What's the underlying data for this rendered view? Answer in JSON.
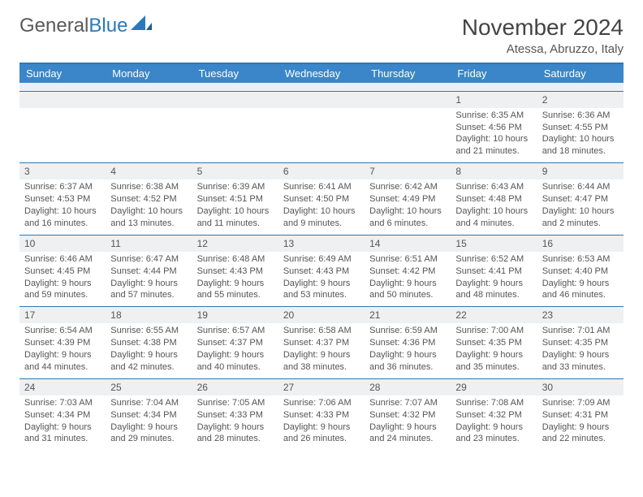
{
  "logo": {
    "text1": "General",
    "text2": "Blue"
  },
  "title": "November 2024",
  "location": "Atessa, Abruzzo, Italy",
  "colors": {
    "header_bg": "#3a86c8",
    "rule": "#2a7ab9",
    "daynum_bg": "#eef0f1",
    "text": "#555555"
  },
  "day_headers": [
    "Sunday",
    "Monday",
    "Tuesday",
    "Wednesday",
    "Thursday",
    "Friday",
    "Saturday"
  ],
  "weeks": [
    [
      null,
      null,
      null,
      null,
      null,
      {
        "n": "1",
        "sr": "Sunrise: 6:35 AM",
        "ss": "Sunset: 4:56 PM",
        "d1": "Daylight: 10 hours",
        "d2": "and 21 minutes."
      },
      {
        "n": "2",
        "sr": "Sunrise: 6:36 AM",
        "ss": "Sunset: 4:55 PM",
        "d1": "Daylight: 10 hours",
        "d2": "and 18 minutes."
      }
    ],
    [
      {
        "n": "3",
        "sr": "Sunrise: 6:37 AM",
        "ss": "Sunset: 4:53 PM",
        "d1": "Daylight: 10 hours",
        "d2": "and 16 minutes."
      },
      {
        "n": "4",
        "sr": "Sunrise: 6:38 AM",
        "ss": "Sunset: 4:52 PM",
        "d1": "Daylight: 10 hours",
        "d2": "and 13 minutes."
      },
      {
        "n": "5",
        "sr": "Sunrise: 6:39 AM",
        "ss": "Sunset: 4:51 PM",
        "d1": "Daylight: 10 hours",
        "d2": "and 11 minutes."
      },
      {
        "n": "6",
        "sr": "Sunrise: 6:41 AM",
        "ss": "Sunset: 4:50 PM",
        "d1": "Daylight: 10 hours",
        "d2": "and 9 minutes."
      },
      {
        "n": "7",
        "sr": "Sunrise: 6:42 AM",
        "ss": "Sunset: 4:49 PM",
        "d1": "Daylight: 10 hours",
        "d2": "and 6 minutes."
      },
      {
        "n": "8",
        "sr": "Sunrise: 6:43 AM",
        "ss": "Sunset: 4:48 PM",
        "d1": "Daylight: 10 hours",
        "d2": "and 4 minutes."
      },
      {
        "n": "9",
        "sr": "Sunrise: 6:44 AM",
        "ss": "Sunset: 4:47 PM",
        "d1": "Daylight: 10 hours",
        "d2": "and 2 minutes."
      }
    ],
    [
      {
        "n": "10",
        "sr": "Sunrise: 6:46 AM",
        "ss": "Sunset: 4:45 PM",
        "d1": "Daylight: 9 hours",
        "d2": "and 59 minutes."
      },
      {
        "n": "11",
        "sr": "Sunrise: 6:47 AM",
        "ss": "Sunset: 4:44 PM",
        "d1": "Daylight: 9 hours",
        "d2": "and 57 minutes."
      },
      {
        "n": "12",
        "sr": "Sunrise: 6:48 AM",
        "ss": "Sunset: 4:43 PM",
        "d1": "Daylight: 9 hours",
        "d2": "and 55 minutes."
      },
      {
        "n": "13",
        "sr": "Sunrise: 6:49 AM",
        "ss": "Sunset: 4:43 PM",
        "d1": "Daylight: 9 hours",
        "d2": "and 53 minutes."
      },
      {
        "n": "14",
        "sr": "Sunrise: 6:51 AM",
        "ss": "Sunset: 4:42 PM",
        "d1": "Daylight: 9 hours",
        "d2": "and 50 minutes."
      },
      {
        "n": "15",
        "sr": "Sunrise: 6:52 AM",
        "ss": "Sunset: 4:41 PM",
        "d1": "Daylight: 9 hours",
        "d2": "and 48 minutes."
      },
      {
        "n": "16",
        "sr": "Sunrise: 6:53 AM",
        "ss": "Sunset: 4:40 PM",
        "d1": "Daylight: 9 hours",
        "d2": "and 46 minutes."
      }
    ],
    [
      {
        "n": "17",
        "sr": "Sunrise: 6:54 AM",
        "ss": "Sunset: 4:39 PM",
        "d1": "Daylight: 9 hours",
        "d2": "and 44 minutes."
      },
      {
        "n": "18",
        "sr": "Sunrise: 6:55 AM",
        "ss": "Sunset: 4:38 PM",
        "d1": "Daylight: 9 hours",
        "d2": "and 42 minutes."
      },
      {
        "n": "19",
        "sr": "Sunrise: 6:57 AM",
        "ss": "Sunset: 4:37 PM",
        "d1": "Daylight: 9 hours",
        "d2": "and 40 minutes."
      },
      {
        "n": "20",
        "sr": "Sunrise: 6:58 AM",
        "ss": "Sunset: 4:37 PM",
        "d1": "Daylight: 9 hours",
        "d2": "and 38 minutes."
      },
      {
        "n": "21",
        "sr": "Sunrise: 6:59 AM",
        "ss": "Sunset: 4:36 PM",
        "d1": "Daylight: 9 hours",
        "d2": "and 36 minutes."
      },
      {
        "n": "22",
        "sr": "Sunrise: 7:00 AM",
        "ss": "Sunset: 4:35 PM",
        "d1": "Daylight: 9 hours",
        "d2": "and 35 minutes."
      },
      {
        "n": "23",
        "sr": "Sunrise: 7:01 AM",
        "ss": "Sunset: 4:35 PM",
        "d1": "Daylight: 9 hours",
        "d2": "and 33 minutes."
      }
    ],
    [
      {
        "n": "24",
        "sr": "Sunrise: 7:03 AM",
        "ss": "Sunset: 4:34 PM",
        "d1": "Daylight: 9 hours",
        "d2": "and 31 minutes."
      },
      {
        "n": "25",
        "sr": "Sunrise: 7:04 AM",
        "ss": "Sunset: 4:34 PM",
        "d1": "Daylight: 9 hours",
        "d2": "and 29 minutes."
      },
      {
        "n": "26",
        "sr": "Sunrise: 7:05 AM",
        "ss": "Sunset: 4:33 PM",
        "d1": "Daylight: 9 hours",
        "d2": "and 28 minutes."
      },
      {
        "n": "27",
        "sr": "Sunrise: 7:06 AM",
        "ss": "Sunset: 4:33 PM",
        "d1": "Daylight: 9 hours",
        "d2": "and 26 minutes."
      },
      {
        "n": "28",
        "sr": "Sunrise: 7:07 AM",
        "ss": "Sunset: 4:32 PM",
        "d1": "Daylight: 9 hours",
        "d2": "and 24 minutes."
      },
      {
        "n": "29",
        "sr": "Sunrise: 7:08 AM",
        "ss": "Sunset: 4:32 PM",
        "d1": "Daylight: 9 hours",
        "d2": "and 23 minutes."
      },
      {
        "n": "30",
        "sr": "Sunrise: 7:09 AM",
        "ss": "Sunset: 4:31 PM",
        "d1": "Daylight: 9 hours",
        "d2": "and 22 minutes."
      }
    ]
  ]
}
